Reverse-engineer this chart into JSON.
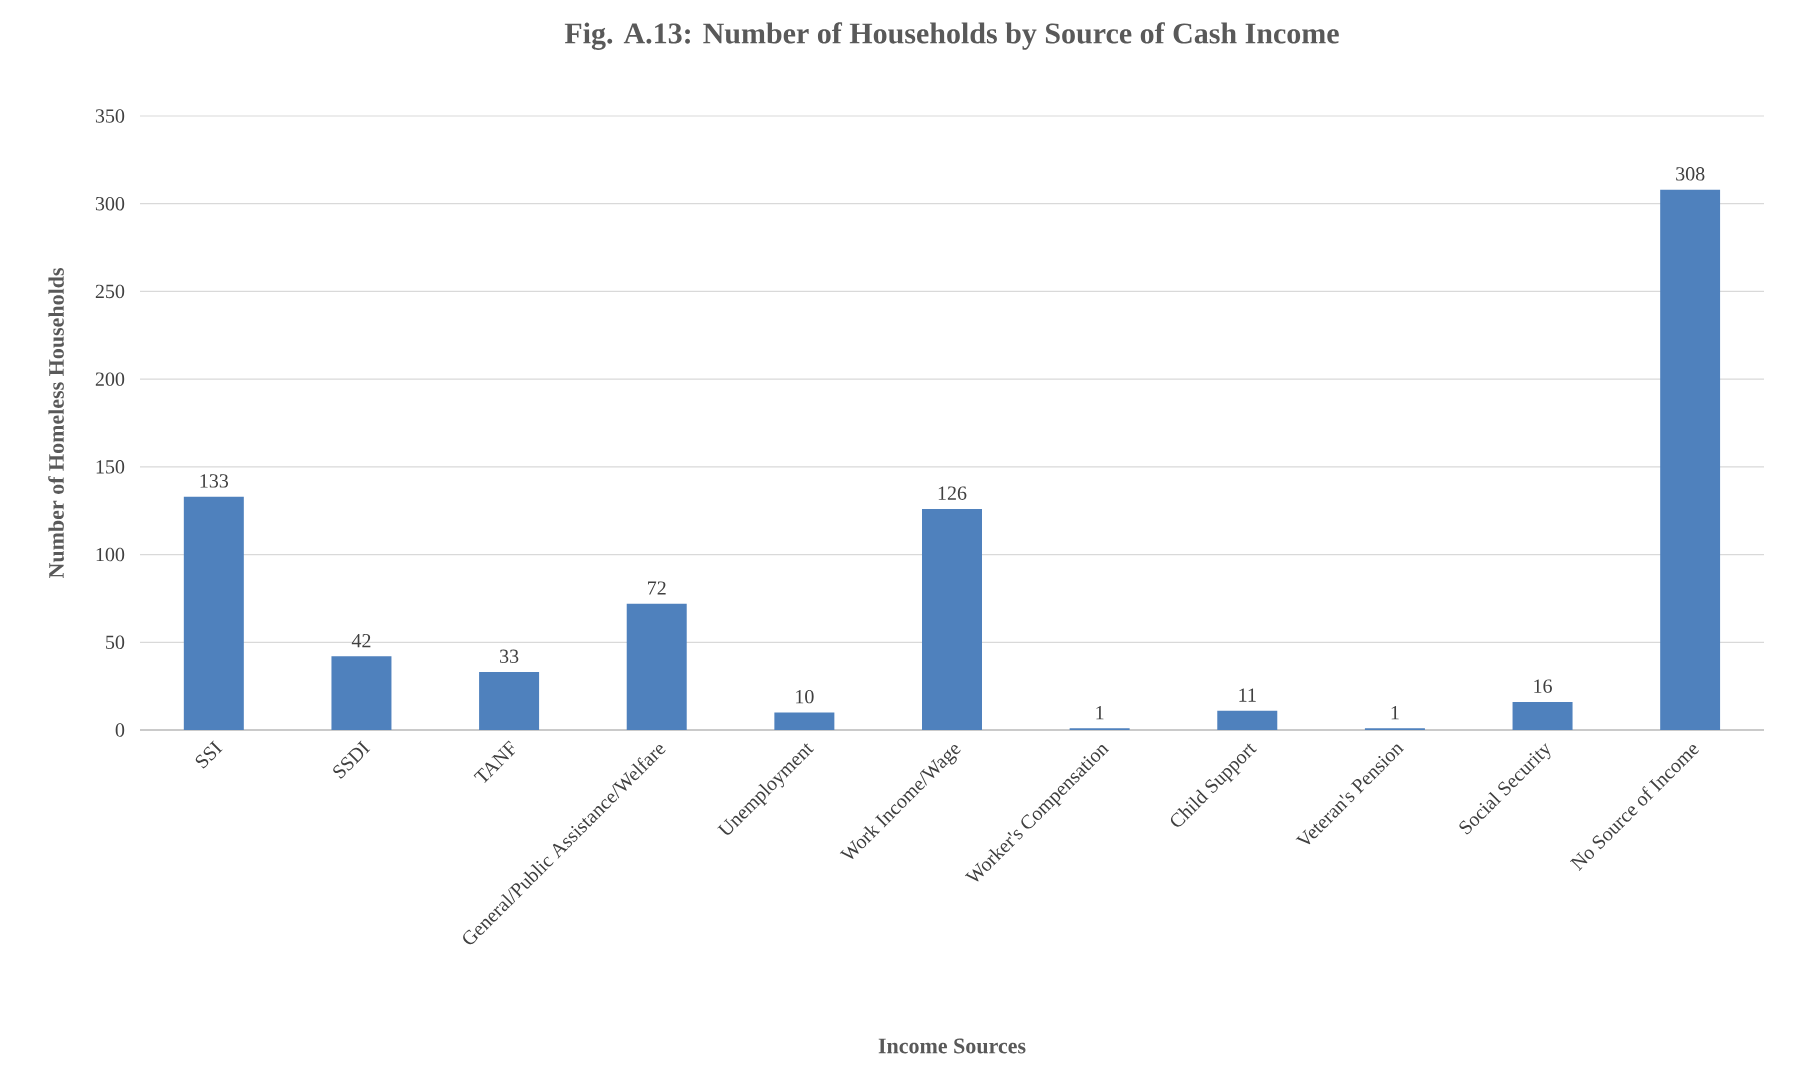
{
  "chart_data": {
    "type": "bar",
    "title": "Fig. A.13: Number of Households by Source of Cash Income",
    "xlabel": "Income Sources",
    "ylabel": "Number of Homeless Households",
    "categories": [
      "SSI",
      "SSDI",
      "TANF",
      "General/Public Assistance/Welfare",
      "Unemployment",
      "Work Income/Wage",
      "Worker's Compensation",
      "Child Support",
      "Veteran's Pension",
      "Social Security",
      "No Source of Income"
    ],
    "values": [
      133,
      42,
      33,
      72,
      10,
      126,
      1,
      11,
      1,
      16,
      308
    ],
    "color": "#4f81bd",
    "ylim": [
      0,
      350
    ],
    "yticks": [
      0,
      50,
      100,
      150,
      200,
      250,
      300,
      350
    ],
    "grid": "y",
    "data_labels": true
  }
}
